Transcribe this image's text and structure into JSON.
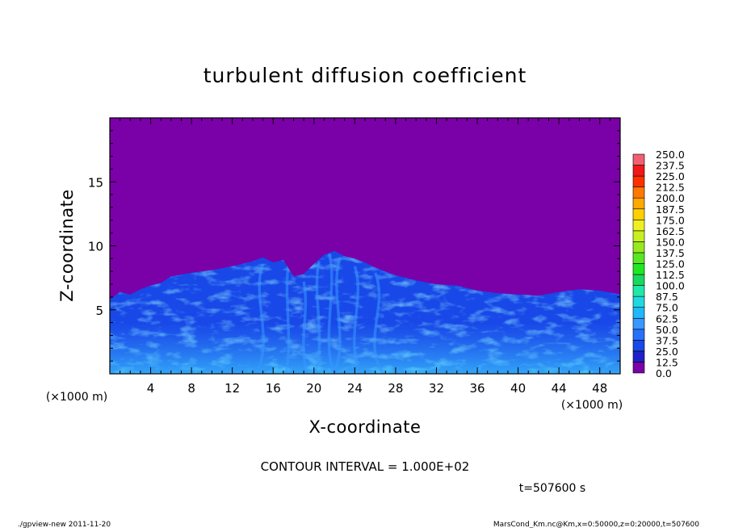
{
  "chart_data": {
    "type": "heatmap",
    "title": "turbulent diffusion coefficient",
    "xlabel": "X-coordinate",
    "ylabel": "Z-coordinate",
    "x_unit": "(×1000 m)",
    "y_unit": "(×1000 m)",
    "xlim": [
      0,
      50
    ],
    "ylim": [
      0,
      20
    ],
    "x_ticks": [
      4,
      8,
      12,
      16,
      20,
      24,
      28,
      32,
      36,
      40,
      44,
      48
    ],
    "y_ticks": [
      5,
      10,
      15
    ],
    "boundary_layer_top": [
      [
        0,
        5.8
      ],
      [
        1,
        6.4
      ],
      [
        2,
        6.2
      ],
      [
        3,
        6.6
      ],
      [
        4,
        6.9
      ],
      [
        5,
        7.1
      ],
      [
        6,
        7.6
      ],
      [
        8,
        7.9
      ],
      [
        10,
        8.1
      ],
      [
        12,
        8.4
      ],
      [
        14,
        8.8
      ],
      [
        15,
        9.1
      ],
      [
        16,
        8.7
      ],
      [
        17,
        8.9
      ],
      [
        18,
        7.6
      ],
      [
        19,
        7.8
      ],
      [
        20,
        8.6
      ],
      [
        21,
        9.3
      ],
      [
        22,
        9.6
      ],
      [
        23,
        9.2
      ],
      [
        24,
        9.0
      ],
      [
        25,
        8.7
      ],
      [
        26,
        8.3
      ],
      [
        27,
        8.0
      ],
      [
        28,
        7.7
      ],
      [
        30,
        7.3
      ],
      [
        32,
        7.0
      ],
      [
        34,
        6.9
      ],
      [
        36,
        6.5
      ],
      [
        38,
        6.3
      ],
      [
        40,
        6.2
      ],
      [
        42,
        6.1
      ],
      [
        44,
        6.4
      ],
      [
        46,
        6.6
      ],
      [
        48,
        6.5
      ],
      [
        50,
        6.2
      ]
    ],
    "colorbar": {
      "levels": [
        0.0,
        12.5,
        25.0,
        37.5,
        50.0,
        62.5,
        75.0,
        87.5,
        100.0,
        112.5,
        125.0,
        137.5,
        150.0,
        162.5,
        175.0,
        187.5,
        200.0,
        212.5,
        225.0,
        237.5,
        250.0
      ],
      "labels": [
        "250.0",
        "237.5",
        "225.0",
        "212.5",
        "200.0",
        "187.5",
        "175.0",
        "162.5",
        "150.0",
        "137.5",
        "125.0",
        "112.5",
        "100.0",
        "87.5",
        "75.0",
        "62.5",
        "50.0",
        "37.5",
        "25.0",
        "12.5",
        "0.0"
      ],
      "colors": [
        "#7a00a8",
        "#2020c8",
        "#1848e8",
        "#2870f8",
        "#3898ff",
        "#20b8f8",
        "#20d8e0",
        "#20e8a8",
        "#18d860",
        "#20e820",
        "#58e820",
        "#98e820",
        "#c8f020",
        "#f0f020",
        "#ffd000",
        "#ffa800",
        "#ff7800",
        "#ff3000",
        "#f01818",
        "#f06070"
      ]
    },
    "background_color": "#7a00a8",
    "contour_interval_text": "CONTOUR INTERVAL = 1.000E+02",
    "time_text": "t=507600 s"
  },
  "footer": {
    "left": "./gpview-new   2011-11-20",
    "right": "MarsCond_Km.nc@Km,x=0:50000,z=0:20000,t=507600"
  }
}
